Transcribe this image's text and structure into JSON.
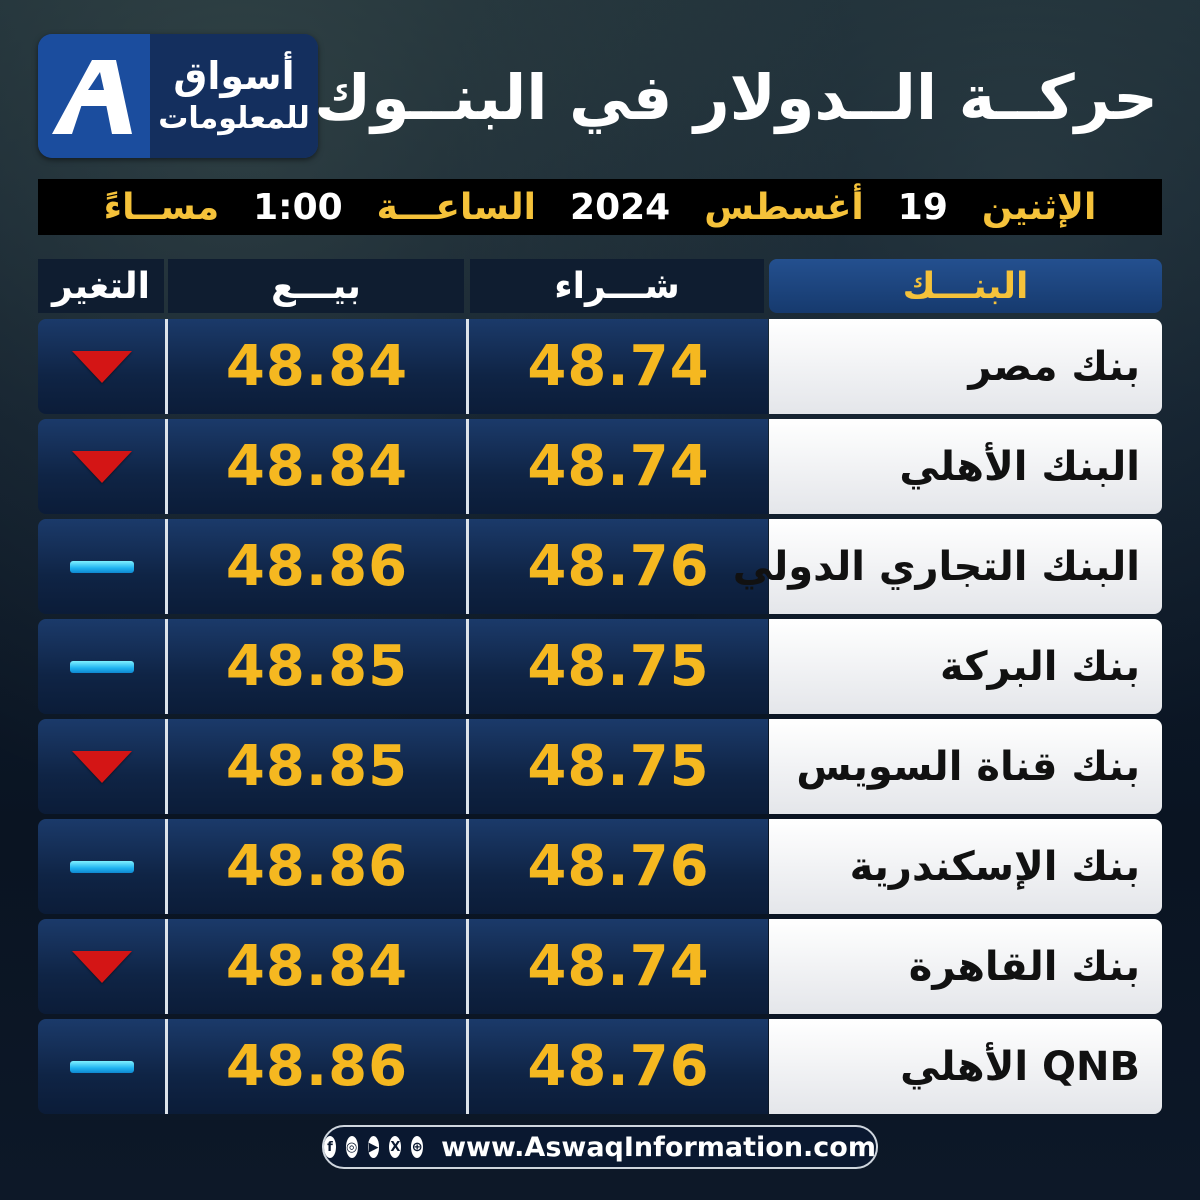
{
  "logo": {
    "line1": "أسواق",
    "line2": "للمعلومات"
  },
  "title": "حركــة الــدولار في البنــوك",
  "date_bar": {
    "day": "الإثنين",
    "day_num": "19",
    "month": "أغسطس",
    "year": "2024",
    "time_label": "الساعـــة",
    "time": "1:00",
    "period": "مســاءً"
  },
  "headers": {
    "bank": "البنـــك",
    "buy": "شـــراء",
    "sell": "بيـــع",
    "change": "التغير"
  },
  "rows": [
    {
      "bank": "بنك مصر",
      "buy": "48.74",
      "sell": "48.84",
      "change": "down"
    },
    {
      "bank": "البنك الأهلي",
      "buy": "48.74",
      "sell": "48.84",
      "change": "down"
    },
    {
      "bank": "البنك التجاري الدولي",
      "buy": "48.76",
      "sell": "48.86",
      "change": "unchanged"
    },
    {
      "bank": "بنك البركة",
      "buy": "48.75",
      "sell": "48.85",
      "change": "unchanged"
    },
    {
      "bank": "بنك قناة السويس",
      "buy": "48.75",
      "sell": "48.85",
      "change": "down"
    },
    {
      "bank": "بنك الإسكندرية",
      "buy": "48.76",
      "sell": "48.86",
      "change": "unchanged"
    },
    {
      "bank": "بنك القاهرة",
      "buy": "48.74",
      "sell": "48.84",
      "change": "down"
    },
    {
      "bank": "QNB الأهلي",
      "buy": "48.76",
      "sell": "48.86",
      "change": "unchanged"
    }
  ],
  "footer": {
    "url": "www.AswaqInformation.com",
    "icons": [
      "facebook-icon",
      "instagram-icon",
      "youtube-icon",
      "x-icon",
      "web-icon"
    ]
  },
  "colors": {
    "accent": "#f5c23a",
    "down": "#d41515",
    "unchanged": "#1fb3f0",
    "panel": "#0f2445"
  }
}
